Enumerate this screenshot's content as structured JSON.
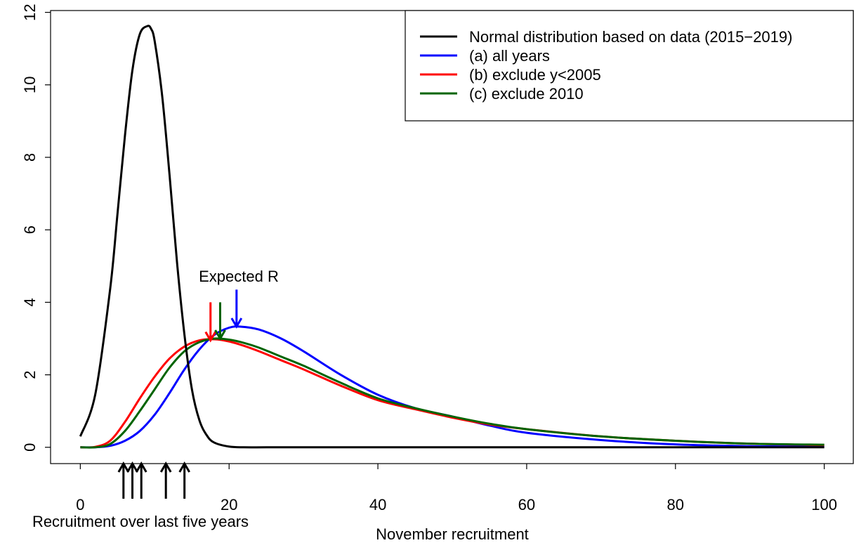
{
  "chart_data": {
    "type": "line",
    "title": "",
    "xlabel": "November recruitment",
    "ylabel": "",
    "xlim": [
      -4,
      104
    ],
    "ylim": [
      -0.45,
      12.05
    ],
    "xticks": [
      0,
      20,
      40,
      60,
      80,
      100
    ],
    "yticks": [
      0,
      2,
      4,
      6,
      8,
      10,
      12
    ],
    "grid": false,
    "legend_position": "top-right",
    "series": [
      {
        "name": "Normal distribution based on data (2015−2019)",
        "color": "#000000",
        "x": [
          0,
          2,
          4,
          5,
          6,
          7,
          8,
          9,
          9.5,
          10,
          11,
          12,
          13,
          14,
          15,
          16,
          17,
          18,
          20,
          22,
          25,
          30,
          40,
          60,
          80,
          100
        ],
        "y": [
          0.3,
          1.45,
          4.35,
          6.45,
          8.6,
          10.4,
          11.4,
          11.62,
          11.55,
          11.2,
          9.7,
          7.5,
          5.1,
          3.1,
          1.6,
          0.75,
          0.33,
          0.13,
          0.02,
          0.0,
          0.0,
          0.0,
          0.0,
          0.0,
          0.0,
          0.0
        ]
      },
      {
        "name": "(a) all years",
        "color": "#0000ff",
        "x": [
          0,
          2,
          4,
          6,
          8,
          10,
          12,
          14,
          16,
          18,
          20,
          21.5,
          24,
          27,
          30,
          35,
          40,
          45,
          50,
          55,
          60,
          70,
          80,
          90,
          100
        ],
        "y": [
          0.0,
          0.0,
          0.04,
          0.18,
          0.45,
          0.9,
          1.5,
          2.15,
          2.7,
          3.1,
          3.3,
          3.33,
          3.25,
          3.0,
          2.65,
          2.0,
          1.45,
          1.08,
          0.85,
          0.6,
          0.4,
          0.2,
          0.08,
          0.03,
          0.02
        ]
      },
      {
        "name": "(b) exclude y<2005",
        "color": "#ff0000",
        "x": [
          0,
          2,
          4,
          6,
          8,
          10,
          12,
          14,
          16,
          18,
          20,
          22,
          24,
          27,
          30,
          35,
          40,
          45,
          50,
          55,
          60,
          70,
          80,
          90,
          100
        ],
        "y": [
          0.0,
          0.01,
          0.18,
          0.7,
          1.35,
          1.95,
          2.45,
          2.78,
          2.95,
          2.98,
          2.92,
          2.8,
          2.65,
          2.4,
          2.15,
          1.7,
          1.3,
          1.05,
          0.82,
          0.63,
          0.5,
          0.3,
          0.18,
          0.1,
          0.06
        ]
      },
      {
        "name": "(c) exclude 2010",
        "color": "#006400",
        "x": [
          0,
          2,
          4,
          6,
          8,
          10,
          12,
          14,
          16,
          18,
          20,
          22,
          24,
          27,
          30,
          35,
          40,
          45,
          50,
          55,
          60,
          70,
          80,
          90,
          100
        ],
        "y": [
          0.0,
          0.0,
          0.09,
          0.45,
          1.0,
          1.6,
          2.2,
          2.65,
          2.9,
          3.0,
          2.97,
          2.88,
          2.75,
          2.5,
          2.25,
          1.78,
          1.35,
          1.08,
          0.85,
          0.65,
          0.5,
          0.3,
          0.18,
          0.1,
          0.07
        ]
      }
    ],
    "expected_r": {
      "label": "Expected R",
      "markers": [
        {
          "color": "#ff0000",
          "x": 17.5,
          "y_from": 4.0,
          "y_to": 2.95
        },
        {
          "color": "#006400",
          "x": 18.8,
          "y_from": 4.0,
          "y_to": 3.0
        },
        {
          "color": "#0000ff",
          "x": 21.0,
          "y_from": 4.35,
          "y_to": 3.33
        }
      ]
    },
    "recent_recruitment": {
      "label": "Recruitment over last five years",
      "values": [
        5.8,
        7.0,
        8.2,
        11.5,
        14.0
      ]
    }
  }
}
